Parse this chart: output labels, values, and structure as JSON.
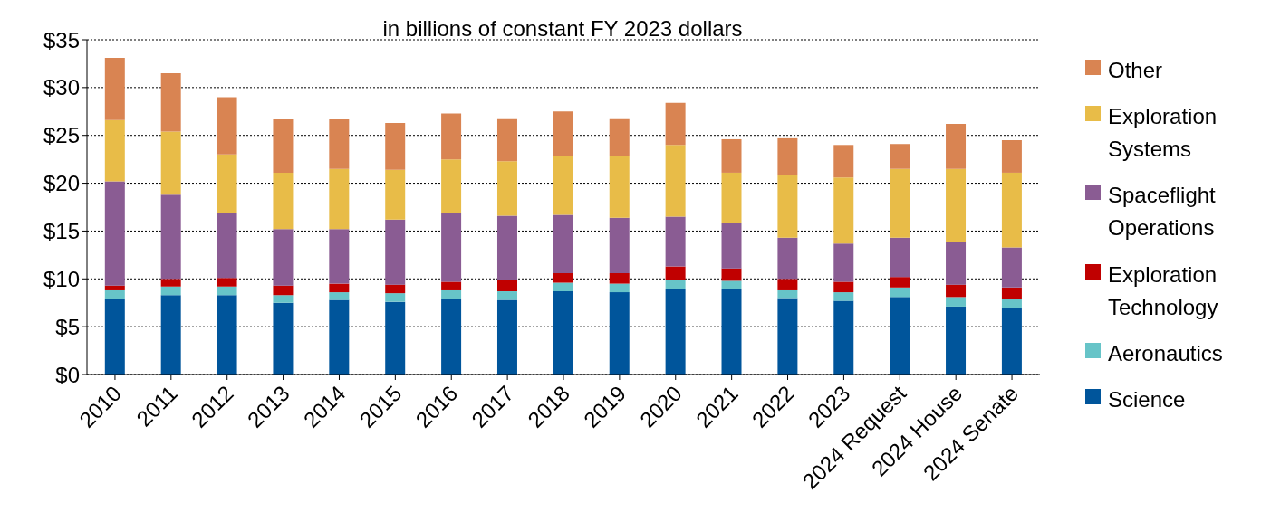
{
  "chart_data": {
    "type": "bar",
    "stacked": true,
    "subtitle": "in billions of constant FY 2023 dollars",
    "categories": [
      "2010",
      "2011",
      "2012",
      "2013",
      "2014",
      "2015",
      "2016",
      "2017",
      "2018",
      "2019",
      "2020",
      "2021",
      "2022",
      "2023",
      "2024 Request",
      "2024 House",
      "2024 Senate"
    ],
    "series": [
      {
        "name": "Science",
        "color": "#00559b",
        "values": [
          7.9,
          8.3,
          8.3,
          7.5,
          7.8,
          7.6,
          7.9,
          7.8,
          8.7,
          8.6,
          8.9,
          8.9,
          8.0,
          7.7,
          8.1,
          7.1,
          7.0
        ]
      },
      {
        "name": "Aeronautics",
        "color": "#67c4c8",
        "values": [
          0.9,
          0.9,
          0.9,
          0.8,
          0.8,
          0.9,
          0.9,
          0.9,
          0.9,
          0.9,
          1.0,
          0.9,
          0.8,
          0.9,
          1.0,
          1.0,
          0.9
        ]
      },
      {
        "name": "Exploration Technology",
        "color": "#c00000",
        "values": [
          0.5,
          0.8,
          0.9,
          1.0,
          0.9,
          0.9,
          0.9,
          1.2,
          1.0,
          1.1,
          1.4,
          1.3,
          1.2,
          1.1,
          1.1,
          1.3,
          1.2
        ]
      },
      {
        "name": "Spaceflight Operations",
        "color": "#8a5c93",
        "values": [
          10.9,
          8.8,
          6.8,
          5.9,
          5.7,
          6.8,
          7.2,
          6.7,
          6.1,
          5.8,
          5.2,
          4.8,
          4.3,
          4.0,
          4.1,
          4.4,
          4.2
        ]
      },
      {
        "name": "Exploration Systems",
        "color": "#e8bc48",
        "values": [
          6.4,
          6.6,
          6.1,
          5.9,
          6.3,
          5.2,
          5.6,
          5.7,
          6.2,
          6.4,
          7.5,
          5.2,
          6.6,
          6.9,
          7.2,
          7.7,
          7.8
        ]
      },
      {
        "name": "Other",
        "color": "#d98452",
        "values": [
          6.5,
          6.1,
          6.0,
          5.6,
          5.2,
          4.9,
          4.8,
          4.5,
          4.6,
          4.0,
          4.4,
          3.5,
          3.8,
          3.4,
          2.6,
          4.7,
          3.4
        ]
      }
    ],
    "ylim": [
      0,
      35
    ],
    "yticks": [
      {
        "value": 0,
        "label": "$0"
      },
      {
        "value": 5,
        "label": "$5"
      },
      {
        "value": 10,
        "label": "$10"
      },
      {
        "value": 15,
        "label": "$15"
      },
      {
        "value": 20,
        "label": "$20"
      },
      {
        "value": 25,
        "label": "$25"
      },
      {
        "value": 30,
        "label": "$30"
      },
      {
        "value": 35,
        "label": "$35"
      }
    ],
    "grid": "y",
    "legend": "right"
  }
}
